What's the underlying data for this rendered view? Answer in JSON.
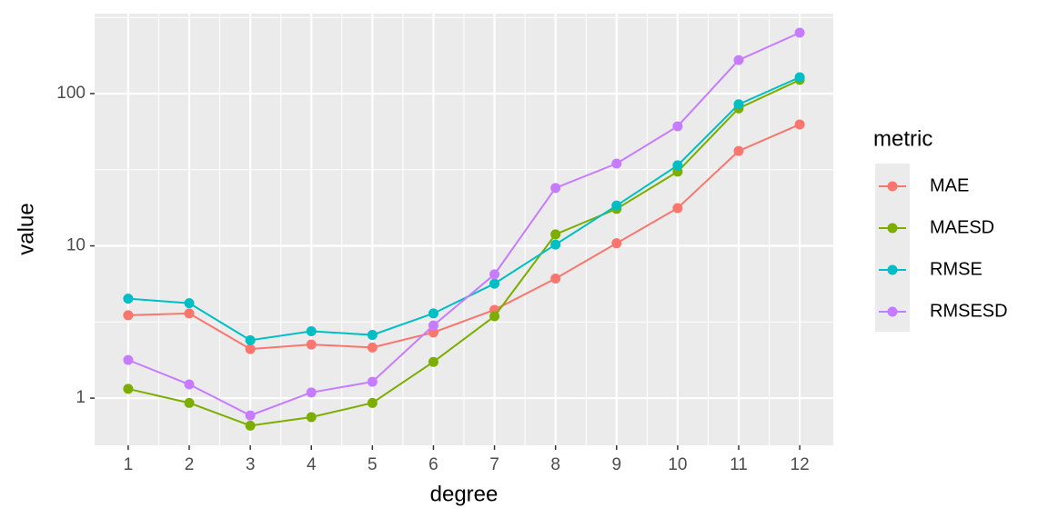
{
  "chart_data": {
    "type": "line",
    "x": [
      1,
      2,
      3,
      4,
      5,
      6,
      7,
      8,
      9,
      10,
      11,
      12
    ],
    "series": [
      {
        "name": "MAE",
        "color": "#F8766D",
        "values": [
          3.5,
          3.6,
          2.1,
          2.25,
          2.15,
          2.7,
          3.8,
          6.1,
          10.4,
          17.7,
          42,
          62.7
        ]
      },
      {
        "name": "MAESD",
        "color": "#7CAE00",
        "values": [
          1.15,
          0.93,
          0.66,
          0.75,
          0.93,
          1.73,
          3.45,
          11.9,
          17.5,
          30.7,
          80,
          123
        ]
      },
      {
        "name": "RMSE",
        "color": "#00BFC4",
        "values": [
          4.5,
          4.2,
          2.4,
          2.75,
          2.6,
          3.6,
          5.65,
          10.2,
          18.4,
          33.8,
          85,
          128
        ]
      },
      {
        "name": "RMSESD",
        "color": "#C77CFF",
        "values": [
          1.78,
          1.23,
          0.77,
          1.09,
          1.28,
          3.0,
          6.5,
          24,
          34.7,
          61,
          166,
          251
        ]
      }
    ],
    "xlabel": "degree",
    "ylabel": "value",
    "legend_title": "metric",
    "xlim": [
      0.45,
      12.55
    ],
    "xticks": [
      1,
      2,
      3,
      4,
      5,
      6,
      7,
      8,
      9,
      10,
      11,
      12
    ],
    "ylim": [
      0.49,
      335
    ],
    "yticks": [
      1,
      10,
      100
    ],
    "log_scale": true,
    "grid": true,
    "legend": "right"
  }
}
